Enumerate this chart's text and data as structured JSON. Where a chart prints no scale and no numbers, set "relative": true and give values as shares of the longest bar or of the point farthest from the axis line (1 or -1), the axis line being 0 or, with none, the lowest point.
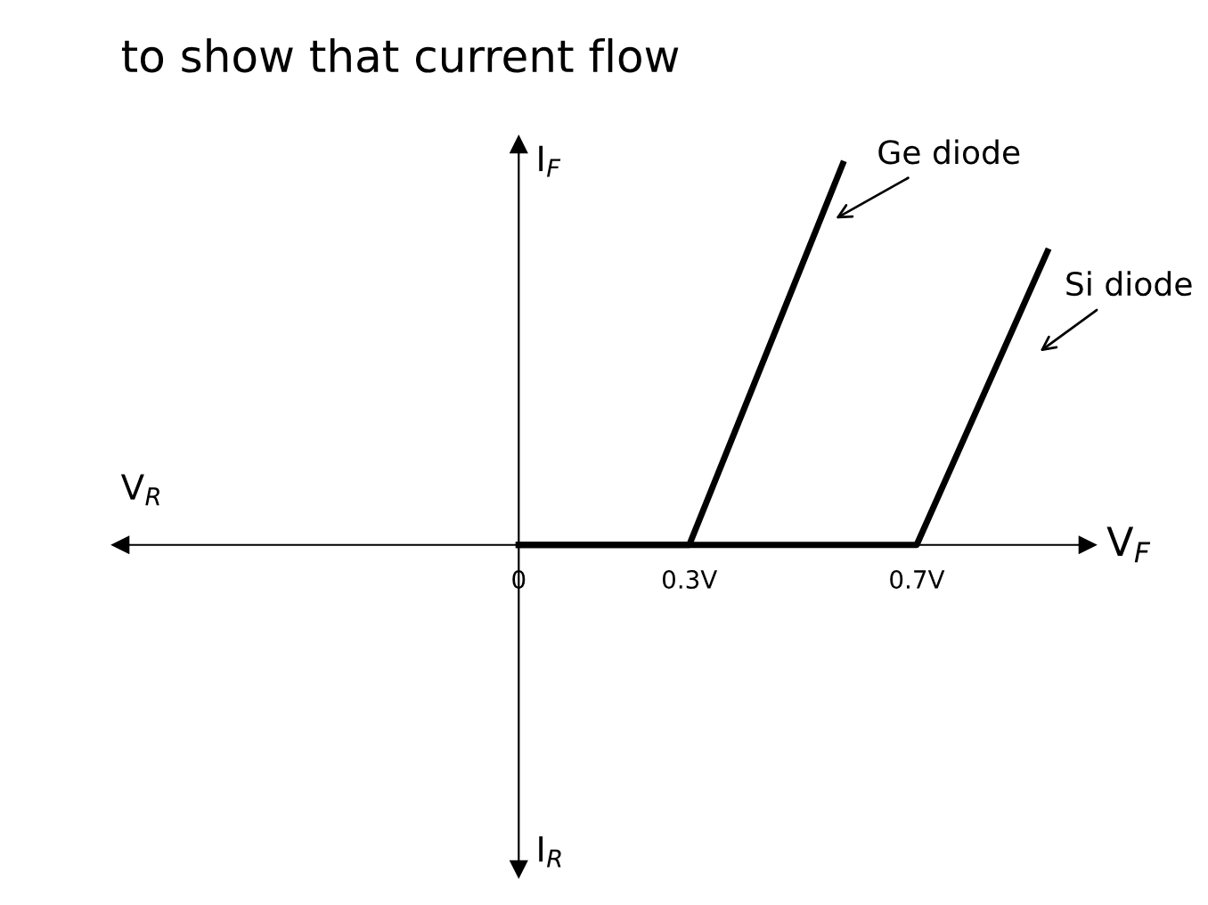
{
  "chart_data": {
    "type": "line",
    "title": "to show that current flow",
    "xlabel": "V$_{F}$",
    "ylabel": "I$_{F}$",
    "relative": true,
    "xlim": [
      -0.7,
      1.0
    ],
    "xticks": [
      0,
      {
        "value": 0.3,
        "label": "0.3V"
      },
      {
        "value": 0.7,
        "label": "0.7V"
      }
    ],
    "tick_labels": "x",
    "legend": false,
    "marker": "none",
    "line_style": "solid",
    "series": [
      {
        "name": "Ge diode",
        "color": "#000000",
        "x": [
          0,
          0.3,
          0.57
        ],
        "values": [
          0,
          0,
          1
        ]
      },
      {
        "name": "Si diode",
        "color": "#000000",
        "x": [
          0,
          0.7,
          0.93
        ],
        "values": [
          0,
          0,
          0.77
        ]
      }
    ],
    "annotations": [
      "V$_{R}$",
      "I$_{R}$"
    ]
  }
}
